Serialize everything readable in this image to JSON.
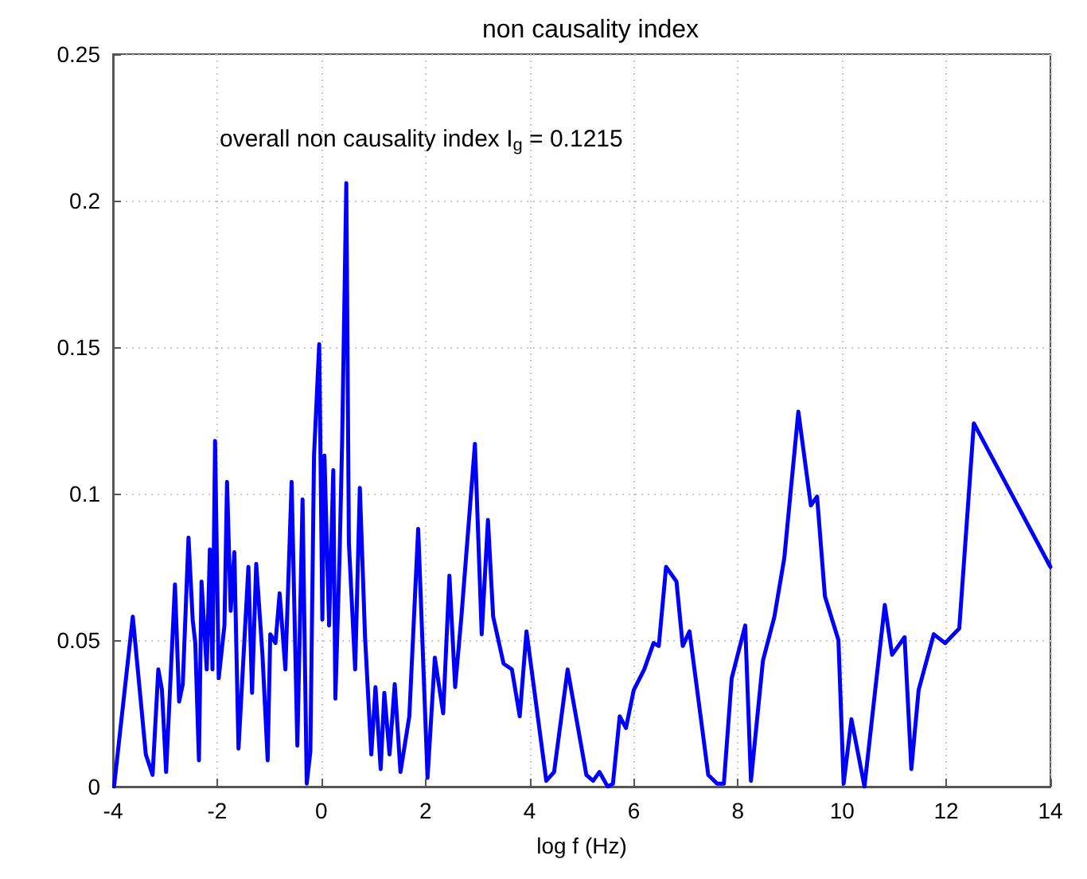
{
  "chart_data": {
    "type": "line",
    "title": "non causality index",
    "xlabel": "log f (Hz)",
    "annotations": [
      "overall non causality index I$_{g}$ = 0.1215"
    ],
    "x": [
      -3.98,
      -3.62,
      -3.37,
      -3.24,
      -3.13,
      -3.06,
      -2.98,
      -2.81,
      -2.73,
      -2.66,
      -2.55,
      -2.47,
      -2.42,
      -2.35,
      -2.3,
      -2.2,
      -2.14,
      -2.09,
      -2.04,
      -1.97,
      -1.86,
      -1.81,
      -1.74,
      -1.67,
      -1.59,
      -1.4,
      -1.33,
      -1.25,
      -1.13,
      -1.03,
      -0.98,
      -0.88,
      -0.8,
      -0.69,
      -0.57,
      -0.46,
      -0.36,
      -0.28,
      -0.21,
      -0.14,
      -0.04,
      0.02,
      0.06,
      0.15,
      0.23,
      0.27,
      0.35,
      0.4,
      0.48,
      0.53,
      0.65,
      0.74,
      0.84,
      0.96,
      1.04,
      1.14,
      1.21,
      1.31,
      1.41,
      1.52,
      1.69,
      1.86,
      2.04,
      2.18,
      2.34,
      2.46,
      2.57,
      2.69,
      2.95,
      3.08,
      3.2,
      3.3,
      3.5,
      3.66,
      3.81,
      3.94,
      4.32,
      4.47,
      4.73,
      5.09,
      5.22,
      5.34,
      5.5,
      5.6,
      5.73,
      5.85,
      6,
      6.2,
      6.38,
      6.48,
      6.62,
      6.82,
      6.94,
      7.07,
      7.43,
      7.6,
      7.73,
      7.88,
      8.14,
      8.25,
      8.48,
      8.7,
      8.89,
      9.16,
      9.4,
      9.52,
      9.67,
      9.93,
      10.03,
      10.18,
      10.43,
      10.63,
      10.82,
      10.96,
      11.2,
      11.33,
      11.47,
      11.76,
      11.98,
      12.25,
      12.53,
      14
    ],
    "series": [
      {
        "color": "#0000ff",
        "values": [
          0,
          0.058,
          0.011,
          0.004,
          0.04,
          0.033,
          0.005,
          0.069,
          0.029,
          0.035,
          0.085,
          0.057,
          0.049,
          0.009,
          0.07,
          0.04,
          0.081,
          0.04,
          0.118,
          0.037,
          0.055,
          0.104,
          0.06,
          0.08,
          0.013,
          0.075,
          0.032,
          0.076,
          0.045,
          0.009,
          0.052,
          0.049,
          0.066,
          0.04,
          0.104,
          0.014,
          0.098,
          0.001,
          0.012,
          0.113,
          0.151,
          0.057,
          0.113,
          0.055,
          0.108,
          0.03,
          0.078,
          0.118,
          0.206,
          0.083,
          0.04,
          0.102,
          0.051,
          0.011,
          0.034,
          0.006,
          0.032,
          0.011,
          0.035,
          0.005,
          0.024,
          0.088,
          0.003,
          0.044,
          0.025,
          0.072,
          0.034,
          0.058,
          0.117,
          0.052,
          0.091,
          0.058,
          0.042,
          0.04,
          0.024,
          0.053,
          0.002,
          0.005,
          0.04,
          0.004,
          0.002,
          0.005,
          0,
          0.001,
          0.024,
          0.02,
          0.033,
          0.04,
          0.049,
          0.048,
          0.075,
          0.07,
          0.048,
          0.053,
          0.004,
          0.001,
          0.001,
          0.037,
          0.055,
          0.002,
          0.043,
          0.058,
          0.078,
          0.128,
          0.096,
          0.099,
          0.065,
          0.05,
          0.001,
          0.023,
          0,
          0.032,
          0.062,
          0.045,
          0.051,
          0.006,
          0.033,
          0.052,
          0.049,
          0.054,
          0.124,
          0.075
        ]
      }
    ],
    "xlim": [
      -4,
      14
    ],
    "xticks": [
      -4,
      -2,
      0,
      2,
      4,
      6,
      8,
      10,
      12,
      14
    ],
    "ylim": [
      0,
      0.25
    ],
    "yticks": [
      0,
      0.05,
      0.1,
      0.15,
      0.2,
      0.25
    ],
    "grid": true,
    "marker": "none",
    "line_style": "solid"
  }
}
